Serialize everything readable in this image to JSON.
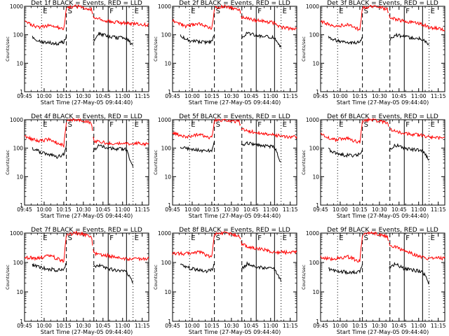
{
  "chart_data": {
    "type": "line",
    "layout": "3x3 grid",
    "y_scale": "log",
    "ylim": [
      1,
      1000
    ],
    "y_ticks": [
      "1",
      "10",
      "100",
      "1000"
    ],
    "x_ticks": [
      "09:45",
      "10:00",
      "10:15",
      "10:30",
      "10:45",
      "11:00",
      "11:15"
    ],
    "xlim_minutes_after_0930": [
      15,
      110
    ],
    "ylabel": "Counts/sec",
    "xlabel": "Start Time (27-May-05 09:44:40)",
    "colors": {
      "events": "#000000",
      "lld": "#ff0000"
    },
    "markers": [
      {
        "label": "E",
        "style": "dotted",
        "minute": 28
      },
      {
        "label": "S",
        "style": "dashed",
        "minute": 47
      },
      {
        "label": "",
        "style": "dashed",
        "minute": 68
      },
      {
        "label": "F",
        "style": "solid",
        "minute": 79
      },
      {
        "label": "",
        "style": "solid",
        "minute": 93
      },
      {
        "label": "E",
        "style": "dotted",
        "minute": 98
      }
    ],
    "panels": [
      {
        "title": "Det 1f BLACK = Events, RED = LLD",
        "events": [
          [
            21,
            80
          ],
          [
            28,
            55
          ],
          [
            40,
            50
          ],
          [
            45,
            55
          ],
          [
            47,
            90
          ],
          [
            68,
            60
          ],
          [
            72,
            110
          ],
          [
            79,
            85
          ],
          [
            93,
            75
          ],
          [
            98,
            40
          ]
        ],
        "lld": [
          [
            15,
            300
          ],
          [
            25,
            180
          ],
          [
            35,
            220
          ],
          [
            45,
            150
          ],
          [
            47,
            900
          ],
          [
            55,
            1000
          ],
          [
            66,
            800
          ],
          [
            68,
            400
          ],
          [
            79,
            300
          ],
          [
            93,
            250
          ],
          [
            98,
            240
          ],
          [
            110,
            220
          ]
        ]
      },
      {
        "title": "Det 2f BLACK = Events, RED = LLD",
        "events": [
          [
            21,
            90
          ],
          [
            28,
            60
          ],
          [
            40,
            55
          ],
          [
            45,
            60
          ],
          [
            47,
            100
          ],
          [
            68,
            70
          ],
          [
            72,
            120
          ],
          [
            79,
            95
          ],
          [
            93,
            80
          ],
          [
            98,
            35
          ]
        ],
        "lld": [
          [
            15,
            320
          ],
          [
            25,
            200
          ],
          [
            35,
            240
          ],
          [
            45,
            160
          ],
          [
            47,
            900
          ],
          [
            55,
            1000
          ],
          [
            66,
            800
          ],
          [
            68,
            420
          ],
          [
            79,
            320
          ],
          [
            93,
            260
          ],
          [
            98,
            180
          ],
          [
            110,
            160
          ]
        ]
      },
      {
        "title": "Det 3f BLACK = Events, RED = LLD",
        "events": [
          [
            21,
            80
          ],
          [
            28,
            60
          ],
          [
            40,
            50
          ],
          [
            45,
            55
          ],
          [
            47,
            95
          ],
          [
            68,
            65
          ],
          [
            72,
            100
          ],
          [
            79,
            85
          ],
          [
            93,
            70
          ],
          [
            98,
            40
          ]
        ],
        "lld": [
          [
            15,
            300
          ],
          [
            25,
            190
          ],
          [
            35,
            230
          ],
          [
            45,
            150
          ],
          [
            47,
            900
          ],
          [
            55,
            1000
          ],
          [
            66,
            800
          ],
          [
            68,
            400
          ],
          [
            79,
            300
          ],
          [
            93,
            230
          ],
          [
            98,
            180
          ],
          [
            110,
            150
          ]
        ]
      },
      {
        "title": "Det 4f BLACK = Events, RED = LLD",
        "events": [
          [
            21,
            100
          ],
          [
            28,
            70
          ],
          [
            40,
            50
          ],
          [
            45,
            60
          ],
          [
            47,
            120
          ],
          [
            68,
            80
          ],
          [
            72,
            130
          ],
          [
            79,
            100
          ],
          [
            93,
            90
          ],
          [
            98,
            20
          ]
        ],
        "lld": [
          [
            15,
            250
          ],
          [
            25,
            180
          ],
          [
            35,
            200
          ],
          [
            45,
            120
          ],
          [
            47,
            900
          ],
          [
            55,
            1000
          ],
          [
            66,
            800
          ],
          [
            68,
            180
          ],
          [
            79,
            150
          ],
          [
            93,
            140
          ],
          [
            98,
            150
          ],
          [
            110,
            140
          ]
        ]
      },
      {
        "title": "Det 5f BLACK = Events, RED = LLD",
        "events": [
          [
            21,
            110
          ],
          [
            28,
            90
          ],
          [
            40,
            80
          ],
          [
            45,
            85
          ],
          [
            47,
            160
          ],
          [
            68,
            120
          ],
          [
            72,
            150
          ],
          [
            79,
            130
          ],
          [
            93,
            110
          ],
          [
            98,
            30
          ]
        ],
        "lld": [
          [
            15,
            350
          ],
          [
            25,
            250
          ],
          [
            35,
            300
          ],
          [
            45,
            230
          ],
          [
            47,
            900
          ],
          [
            55,
            1000
          ],
          [
            66,
            850
          ],
          [
            68,
            450
          ],
          [
            79,
            350
          ],
          [
            93,
            300
          ],
          [
            98,
            260
          ],
          [
            110,
            250
          ]
        ]
      },
      {
        "title": "Det 6f BLACK = Events, RED = LLD",
        "events": [
          [
            21,
            90
          ],
          [
            28,
            60
          ],
          [
            40,
            55
          ],
          [
            45,
            60
          ],
          [
            47,
            100
          ],
          [
            68,
            90
          ],
          [
            72,
            130
          ],
          [
            79,
            100
          ],
          [
            93,
            80
          ],
          [
            98,
            40
          ]
        ],
        "lld": [
          [
            15,
            300
          ],
          [
            25,
            200
          ],
          [
            35,
            220
          ],
          [
            45,
            160
          ],
          [
            47,
            900
          ],
          [
            55,
            1000
          ],
          [
            66,
            800
          ],
          [
            68,
            450
          ],
          [
            79,
            330
          ],
          [
            93,
            280
          ],
          [
            98,
            240
          ],
          [
            110,
            220
          ]
        ]
      },
      {
        "title": "Det 7f BLACK = Events, RED = LLD",
        "events": [
          [
            21,
            80
          ],
          [
            28,
            65
          ],
          [
            40,
            55
          ],
          [
            45,
            60
          ],
          [
            47,
            90
          ],
          [
            68,
            70
          ],
          [
            72,
            80
          ],
          [
            79,
            60
          ],
          [
            93,
            50
          ],
          [
            98,
            20
          ]
        ],
        "lld": [
          [
            15,
            150
          ],
          [
            25,
            140
          ],
          [
            35,
            170
          ],
          [
            45,
            110
          ],
          [
            47,
            900
          ],
          [
            55,
            1000
          ],
          [
            66,
            800
          ],
          [
            68,
            200
          ],
          [
            79,
            170
          ],
          [
            93,
            130
          ],
          [
            98,
            130
          ],
          [
            110,
            140
          ]
        ]
      },
      {
        "title": "Det 8f BLACK = Events, RED = LLD",
        "events": [
          [
            21,
            80
          ],
          [
            28,
            65
          ],
          [
            40,
            50
          ],
          [
            45,
            55
          ],
          [
            47,
            90
          ],
          [
            68,
            60
          ],
          [
            72,
            90
          ],
          [
            79,
            70
          ],
          [
            93,
            60
          ],
          [
            98,
            25
          ]
        ],
        "lld": [
          [
            15,
            200
          ],
          [
            25,
            200
          ],
          [
            35,
            230
          ],
          [
            45,
            150
          ],
          [
            47,
            900
          ],
          [
            55,
            1000
          ],
          [
            66,
            800
          ],
          [
            68,
            400
          ],
          [
            79,
            300
          ],
          [
            93,
            230
          ],
          [
            98,
            220
          ],
          [
            110,
            220
          ]
        ]
      },
      {
        "title": "Det 9f BLACK = Events, RED = LLD",
        "events": [
          [
            21,
            60
          ],
          [
            28,
            50
          ],
          [
            40,
            45
          ],
          [
            45,
            50
          ],
          [
            47,
            80
          ],
          [
            68,
            70
          ],
          [
            72,
            90
          ],
          [
            79,
            60
          ],
          [
            93,
            50
          ],
          [
            98,
            20
          ]
        ],
        "lld": [
          [
            15,
            150
          ],
          [
            25,
            130
          ],
          [
            35,
            160
          ],
          [
            45,
            110
          ],
          [
            47,
            900
          ],
          [
            55,
            1000
          ],
          [
            66,
            800
          ],
          [
            68,
            400
          ],
          [
            79,
            250
          ],
          [
            93,
            150
          ],
          [
            98,
            140
          ],
          [
            110,
            140
          ]
        ]
      }
    ]
  }
}
